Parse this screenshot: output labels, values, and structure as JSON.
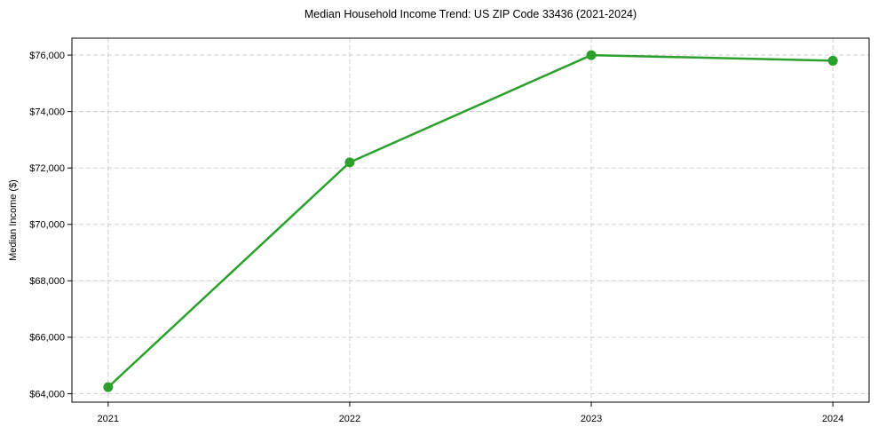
{
  "page": {
    "background_color": "#ffffff"
  },
  "chart_data": {
    "type": "line",
    "title": "Median Household Income Trend: US ZIP Code 33436 (2021-2024)",
    "xlabel": "",
    "ylabel": "Median Income ($)",
    "x": [
      2021,
      2022,
      2023,
      2024
    ],
    "xticks": [
      2021,
      2022,
      2023,
      2024
    ],
    "xtick_labels": [
      "2021",
      "2022",
      "2023",
      "2024"
    ],
    "yticks": [
      64000,
      66000,
      68000,
      70000,
      72000,
      74000,
      76000
    ],
    "ytick_labels": [
      "$64,000",
      "$66,000",
      "$68,000",
      "$70,000",
      "$72,000",
      "$74,000",
      "$76,000"
    ],
    "series": [
      {
        "name": "Median Household Income",
        "values": [
          64230,
          72200,
          76000,
          75800
        ],
        "color": "#2ca02c",
        "line_width": 2.5,
        "marker": "circle",
        "marker_radius": 5.5
      }
    ],
    "xlim": [
      2020.85,
      2024.15
    ],
    "ylim": [
      63700,
      76600
    ],
    "grid": "dashed",
    "grid_color": "#c9c9c9",
    "axis_color": "#000000",
    "tick_length": 5,
    "legend_position": "none"
  }
}
